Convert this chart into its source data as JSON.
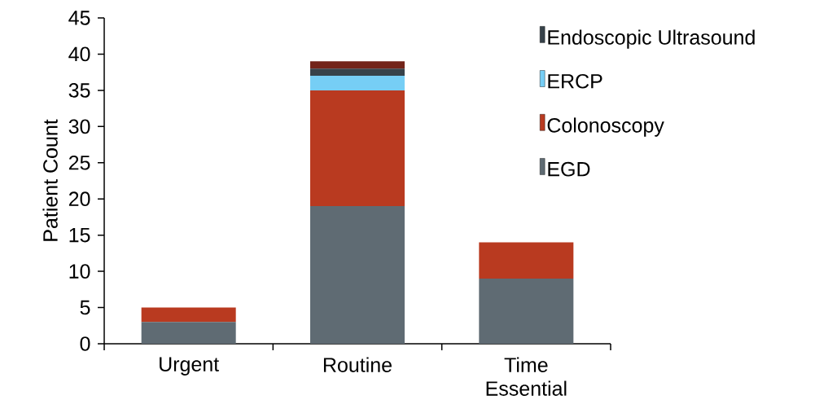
{
  "chart_data": {
    "type": "bar",
    "stacked": true,
    "ylabel": "Patient Count",
    "categories": [
      "Urgent",
      "Routine",
      "Time Essential"
    ],
    "ylim": [
      0,
      45
    ],
    "yticks": [
      0,
      5,
      10,
      15,
      20,
      25,
      30,
      35,
      40,
      45
    ],
    "legend": "top right",
    "series": [
      {
        "name": "EGD",
        "color": "#5f6b73",
        "values": [
          3,
          19,
          9
        ]
      },
      {
        "name": "Colonoscopy",
        "color": "#b93a20",
        "values": [
          2,
          16,
          5
        ]
      },
      {
        "name": "ERCP",
        "color": "#76cef5",
        "values": [
          0,
          2,
          0
        ]
      },
      {
        "name": "Endoscopic Ultrasound",
        "color": "#37424a",
        "values": [
          0,
          1,
          0
        ]
      },
      {
        "color": "#73241a",
        "values": [
          0,
          1,
          0
        ]
      }
    ]
  }
}
